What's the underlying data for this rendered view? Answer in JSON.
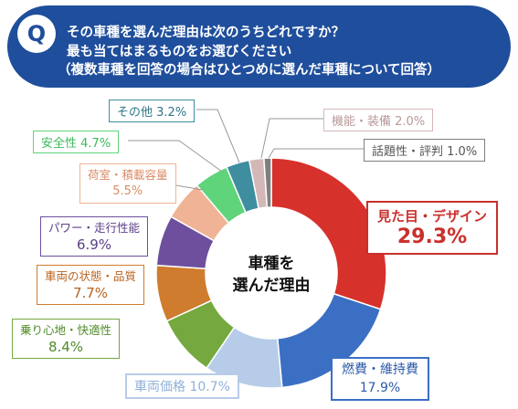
{
  "question": {
    "badge": "Q",
    "line1": "その車種を選んだ理由は次のうちどれですか？",
    "line2": "最も当てはまるものをお選びください",
    "line3": "（複数車種を回答の場合はひとつめに選んだ車種について回答）"
  },
  "chart_data": {
    "type": "pie",
    "center_label": [
      "車種を",
      "選んだ理由"
    ],
    "slices": [
      {
        "label": "見た目・デザイン",
        "value": 29.3,
        "display": "29.3%",
        "color": "#d7312b"
      },
      {
        "label": "燃費・維持費",
        "value": 17.9,
        "display": "17.9%",
        "color": "#3a6fc4"
      },
      {
        "label": "車両価格",
        "value": 10.7,
        "display": "10.7%",
        "color": "#b7cce8"
      },
      {
        "label": "乗り心地・快適性",
        "value": 8.4,
        "display": "8.4%",
        "color": "#75a83f"
      },
      {
        "label": "車両の状態・品質",
        "value": 7.7,
        "display": "7.7%",
        "color": "#cf7c2e"
      },
      {
        "label": "パワー・走行性能",
        "value": 6.9,
        "display": "6.9%",
        "color": "#6d4f9e"
      },
      {
        "label": "荷室・積載容量",
        "value": 5.5,
        "display": "5.5%",
        "color": "#f0b395"
      },
      {
        "label": "安全性",
        "value": 4.7,
        "display": "4.7%",
        "color": "#5fd47a"
      },
      {
        "label": "その他",
        "value": 3.2,
        "display": "3.2%",
        "color": "#3f8ea0"
      },
      {
        "label": "機能・装備",
        "value": 2.0,
        "display": "2.0%",
        "color": "#d4b8b8"
      },
      {
        "label": "話題性・評判",
        "value": 1.0,
        "display": "1.0%",
        "color": "#7f7f7f"
      }
    ]
  }
}
